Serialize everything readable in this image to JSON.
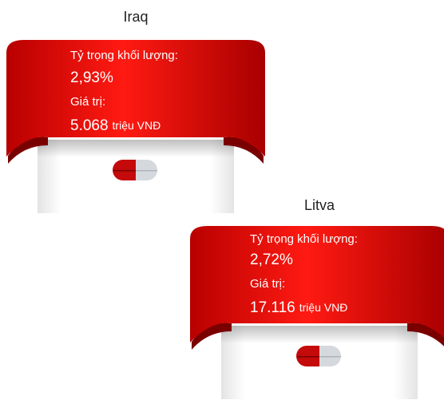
{
  "cards": [
    {
      "country": "Iraq",
      "share_label": "Tỷ trọng khối lượng:",
      "share": "2,93%",
      "value_label": "Giá trị:",
      "value": "5.068",
      "unit": "triệu VNĐ"
    },
    {
      "country": "Litva",
      "share_label": "Tỷ trọng khối lượng:",
      "share": "2,72%",
      "value_label": "Giá trị:",
      "value": "17.116",
      "unit": "triệu VNĐ"
    }
  ]
}
